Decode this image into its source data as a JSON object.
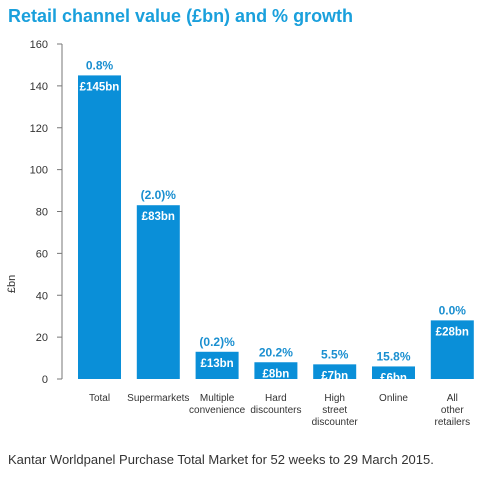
{
  "chart_data": {
    "type": "bar",
    "title": "Retail channel value (£bn) and % growth",
    "ylabel": "£bn",
    "xlabel": "",
    "ylim": [
      0,
      160
    ],
    "yticks": [
      0,
      20,
      40,
      60,
      80,
      100,
      120,
      140,
      160
    ],
    "grid": false,
    "categories": [
      [
        "Total"
      ],
      [
        "Supermarkets"
      ],
      [
        "Multiple",
        "convenience"
      ],
      [
        "Hard",
        "discounters"
      ],
      [
        "High",
        "street",
        "discounter"
      ],
      [
        "Online"
      ],
      [
        "All",
        "other",
        "retailers"
      ]
    ],
    "values": [
      145,
      83,
      13,
      8,
      7,
      6,
      28
    ],
    "value_labels": [
      "£145bn",
      "£83bn",
      "£13bn",
      "£8bn",
      "£7bn",
      "£6bn",
      "£28bn"
    ],
    "growth_labels": [
      "0.8%",
      "(2.0)%",
      "(0.2)%",
      "20.2%",
      "5.5%",
      "15.8%",
      "0.0%"
    ],
    "source": "Kantar Worldpanel Purchase Total Market for 52 weeks to 29 March 2015."
  },
  "colors": {
    "bar": "#0a8fd8",
    "title": "#1aa0dc",
    "growth_label": "#1a8fd0",
    "axis": "#777777",
    "text": "#333333"
  }
}
